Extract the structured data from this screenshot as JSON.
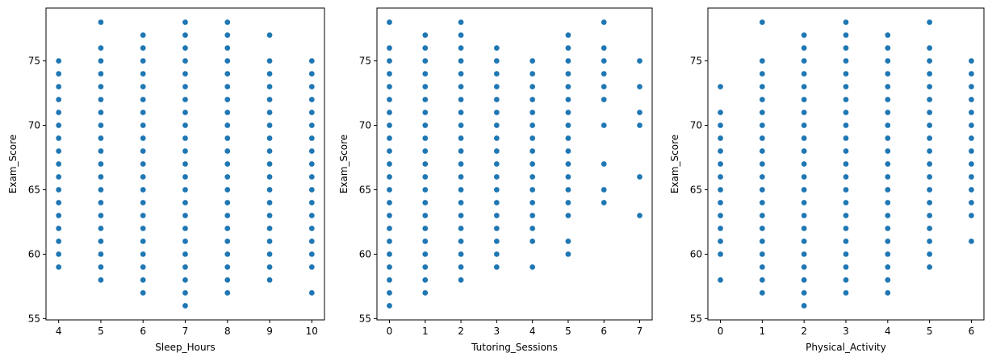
{
  "chart_data": [
    {
      "type": "scatter",
      "xlabel": "Sleep_Hours",
      "ylabel": "Exam_Score",
      "xlim": [
        3.7,
        10.3
      ],
      "ylim": [
        54.9,
        79.1
      ],
      "x_ticks": [
        4,
        5,
        6,
        7,
        8,
        9,
        10
      ],
      "y_ticks": [
        55,
        60,
        65,
        70,
        75
      ],
      "marker_color": "#1f77b4",
      "columns": [
        {
          "x": 4,
          "y": [
            59,
            60,
            61,
            62,
            63,
            64,
            65,
            66,
            67,
            68,
            69,
            70,
            71,
            72,
            73,
            74,
            75
          ]
        },
        {
          "x": 5,
          "y": [
            58,
            59,
            60,
            61,
            62,
            63,
            64,
            65,
            66,
            67,
            68,
            69,
            70,
            71,
            72,
            73,
            74,
            75,
            76,
            78
          ]
        },
        {
          "x": 6,
          "y": [
            57,
            58,
            59,
            60,
            61,
            62,
            63,
            64,
            65,
            66,
            67,
            68,
            69,
            70,
            71,
            72,
            73,
            74,
            75,
            76,
            77
          ]
        },
        {
          "x": 7,
          "y": [
            56,
            57,
            58,
            59,
            60,
            61,
            62,
            63,
            64,
            65,
            66,
            67,
            68,
            69,
            70,
            71,
            72,
            73,
            74,
            75,
            76,
            77,
            78
          ]
        },
        {
          "x": 8,
          "y": [
            57,
            58,
            59,
            60,
            61,
            62,
            63,
            64,
            65,
            66,
            67,
            68,
            69,
            70,
            71,
            72,
            73,
            74,
            75,
            76,
            77,
            78
          ]
        },
        {
          "x": 9,
          "y": [
            58,
            59,
            60,
            61,
            62,
            63,
            64,
            65,
            66,
            67,
            68,
            69,
            70,
            71,
            72,
            73,
            74,
            75,
            77
          ]
        },
        {
          "x": 10,
          "y": [
            57,
            59,
            60,
            61,
            62,
            63,
            64,
            65,
            66,
            67,
            68,
            69,
            70,
            71,
            72,
            73,
            74,
            75
          ]
        }
      ]
    },
    {
      "type": "scatter",
      "xlabel": "Tutoring_Sessions",
      "ylabel": "Exam_Score",
      "xlim": [
        -0.35,
        7.35
      ],
      "ylim": [
        54.9,
        79.1
      ],
      "x_ticks": [
        0,
        1,
        2,
        3,
        4,
        5,
        6,
        7
      ],
      "y_ticks": [
        55,
        60,
        65,
        70,
        75
      ],
      "marker_color": "#1f77b4",
      "columns": [
        {
          "x": 0,
          "y": [
            56,
            57,
            58,
            59,
            60,
            61,
            62,
            63,
            64,
            65,
            66,
            67,
            68,
            69,
            70,
            71,
            72,
            73,
            74,
            75,
            76,
            78
          ]
        },
        {
          "x": 1,
          "y": [
            57,
            58,
            59,
            60,
            61,
            62,
            63,
            64,
            65,
            66,
            67,
            68,
            69,
            70,
            71,
            72,
            73,
            74,
            75,
            76,
            77
          ]
        },
        {
          "x": 2,
          "y": [
            58,
            59,
            60,
            61,
            62,
            63,
            64,
            65,
            66,
            67,
            68,
            69,
            70,
            71,
            72,
            73,
            74,
            75,
            76,
            77,
            78
          ]
        },
        {
          "x": 3,
          "y": [
            59,
            60,
            61,
            62,
            63,
            64,
            65,
            66,
            67,
            68,
            69,
            70,
            71,
            72,
            73,
            74,
            75,
            76
          ]
        },
        {
          "x": 4,
          "y": [
            59,
            61,
            62,
            63,
            64,
            65,
            66,
            67,
            68,
            69,
            70,
            71,
            72,
            73,
            74,
            75
          ]
        },
        {
          "x": 5,
          "y": [
            60,
            61,
            63,
            64,
            65,
            66,
            67,
            68,
            69,
            70,
            71,
            72,
            73,
            74,
            75,
            76,
            77
          ]
        },
        {
          "x": 6,
          "y": [
            64,
            65,
            67,
            70,
            72,
            73,
            74,
            75,
            76,
            78
          ]
        },
        {
          "x": 7,
          "y": [
            63,
            66,
            70,
            71,
            73,
            75
          ]
        }
      ]
    },
    {
      "type": "scatter",
      "xlabel": "Physical_Activity",
      "ylabel": "Exam_Score",
      "xlim": [
        -0.3,
        6.3
      ],
      "ylim": [
        54.9,
        79.1
      ],
      "x_ticks": [
        0,
        1,
        2,
        3,
        4,
        5,
        6
      ],
      "y_ticks": [
        55,
        60,
        65,
        70,
        75
      ],
      "marker_color": "#1f77b4",
      "columns": [
        {
          "x": 0,
          "y": [
            58,
            60,
            61,
            62,
            63,
            64,
            65,
            66,
            67,
            68,
            69,
            70,
            71,
            73
          ]
        },
        {
          "x": 1,
          "y": [
            57,
            58,
            59,
            60,
            61,
            62,
            63,
            64,
            65,
            66,
            67,
            68,
            69,
            70,
            71,
            72,
            73,
            74,
            75,
            78
          ]
        },
        {
          "x": 2,
          "y": [
            56,
            57,
            58,
            59,
            60,
            61,
            62,
            63,
            64,
            65,
            66,
            67,
            68,
            69,
            70,
            71,
            72,
            73,
            74,
            75,
            76,
            77
          ]
        },
        {
          "x": 3,
          "y": [
            57,
            58,
            59,
            60,
            61,
            62,
            63,
            64,
            65,
            66,
            67,
            68,
            69,
            70,
            71,
            72,
            73,
            74,
            75,
            76,
            77,
            78
          ]
        },
        {
          "x": 4,
          "y": [
            57,
            58,
            59,
            60,
            61,
            62,
            63,
            64,
            65,
            66,
            67,
            68,
            69,
            70,
            71,
            72,
            73,
            74,
            75,
            76,
            77
          ]
        },
        {
          "x": 5,
          "y": [
            59,
            60,
            61,
            62,
            63,
            64,
            65,
            66,
            67,
            68,
            69,
            70,
            71,
            72,
            73,
            74,
            75,
            76,
            78
          ]
        },
        {
          "x": 6,
          "y": [
            61,
            63,
            64,
            65,
            66,
            67,
            68,
            69,
            70,
            71,
            72,
            73,
            74,
            75
          ]
        }
      ]
    }
  ]
}
